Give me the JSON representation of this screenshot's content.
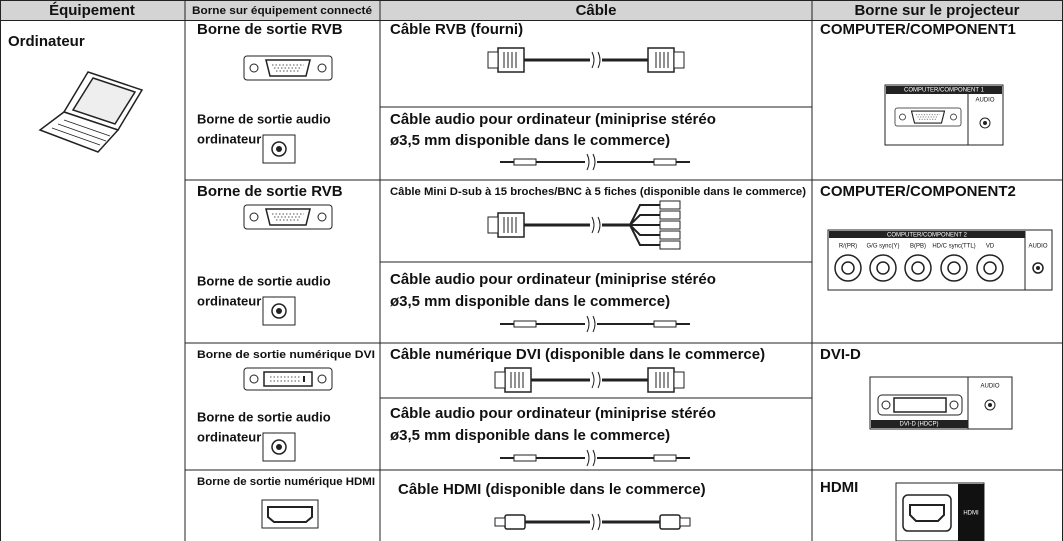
{
  "table": {
    "headers": [
      "Équipement",
      "Borne sur équipement connecté",
      "Câble",
      "Borne sur le projecteur"
    ],
    "equipment": "Ordinateur",
    "rows": [
      {
        "source": "Borne de sortie RVB",
        "cable": "Câble RVB (fourni)",
        "audio_source": [
          "Borne de sortie audio",
          "ordinateur"
        ],
        "audio_cable": [
          "Câble audio pour ordinateur (miniprise stéréo",
          "ø3,5 mm disponible dans le commerce)"
        ],
        "projector": "COMPUTER/COMPONENT1",
        "panel_labels": [
          "COMPUTER/COMPONENT 1",
          "AUDIO"
        ]
      },
      {
        "source": "Borne de sortie RVB",
        "cable": "Câble Mini D-sub à 15 broches/BNC à 5 fiches (disponible dans le commerce)",
        "audio_source": [
          "Borne de sortie audio",
          "ordinateur"
        ],
        "audio_cable": [
          "Câble audio pour ordinateur (miniprise stéréo",
          "ø3,5 mm disponible dans le commerce)"
        ],
        "projector": "COMPUTER/COMPONENT2",
        "panel_labels": [
          "COMPUTER/COMPONENT 2",
          "R/(PR)",
          "G/G sync(Y)",
          "B(PB)",
          "HD/C sync(TTL)",
          "VD",
          "AUDIO"
        ]
      },
      {
        "source": "Borne de sortie numérique DVI",
        "cable": "Câble numérique DVI (disponible dans le commerce)",
        "audio_source": [
          "Borne de sortie audio",
          "ordinateur"
        ],
        "audio_cable": [
          "Câble audio pour ordinateur (miniprise stéréo",
          "ø3,5 mm disponible dans le commerce)"
        ],
        "projector": "DVI-D",
        "panel_labels": [
          "AUDIO",
          "DVI-D (HDCP)"
        ]
      },
      {
        "source": "Borne de sortie numérique HDMI",
        "cable": "Câble HDMI (disponible dans le commerce)",
        "projector": "HDMI",
        "panel_labels": [
          "HDMI"
        ]
      }
    ]
  }
}
